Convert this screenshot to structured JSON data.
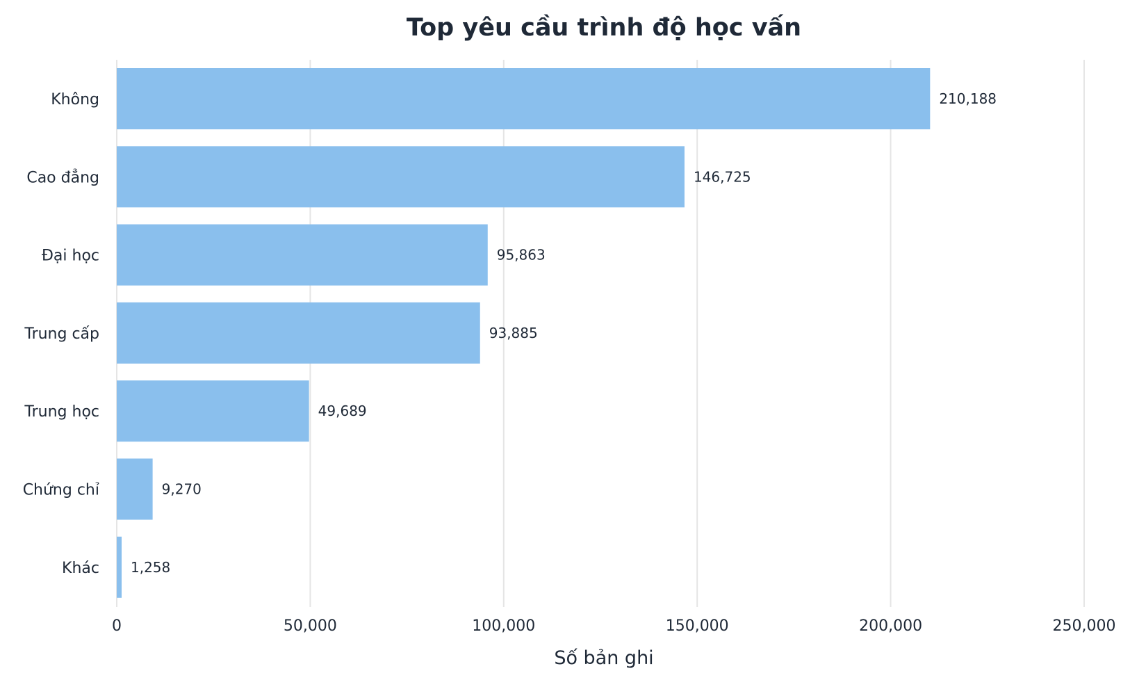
{
  "chart_data": {
    "type": "bar",
    "orientation": "horizontal",
    "title": "Top yêu cầu trình độ học vấn",
    "xlabel": "Số bản ghi",
    "ylabel": "",
    "categories": [
      "Không",
      "Cao đẳng",
      "Đại học",
      "Trung cấp",
      "Trung học",
      "Chứng chỉ",
      "Khác"
    ],
    "values": [
      210188,
      146725,
      95863,
      93885,
      49689,
      9270,
      1258
    ],
    "value_labels": [
      "210,188",
      "146,725",
      "95,863",
      "93,885",
      "49,689",
      "9,270",
      "1,258"
    ],
    "xlim": [
      0,
      250000
    ],
    "xticks": [
      0,
      50000,
      100000,
      150000,
      200000,
      250000
    ],
    "xtick_labels": [
      "0",
      "50,000",
      "100,000",
      "150,000",
      "200,000",
      "250,000"
    ],
    "grid": "vertical",
    "legend": "none",
    "bar_color": "#8abfed",
    "grid_color": "#e5e5e5"
  }
}
